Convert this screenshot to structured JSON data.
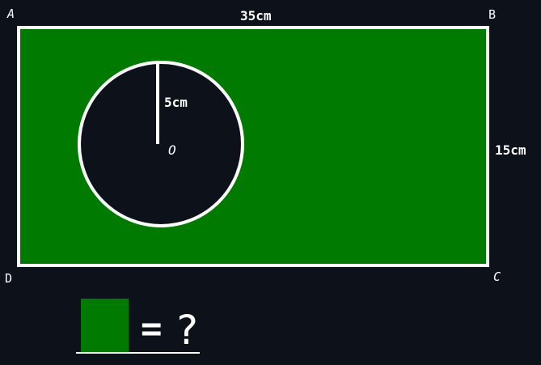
{
  "vertices": {
    "a": "A",
    "b": "B",
    "c": "C",
    "d": "D"
  },
  "center_label": "O",
  "dimensions": {
    "width": "35cm",
    "height": "15cm",
    "radius": "5cm"
  },
  "question": {
    "equals": "=",
    "unknown": "?"
  },
  "colors": {
    "background": "#0d111a",
    "shaded_region": "#007a00",
    "outline": "#ffffff",
    "circle_fill": "#0d111a"
  }
}
